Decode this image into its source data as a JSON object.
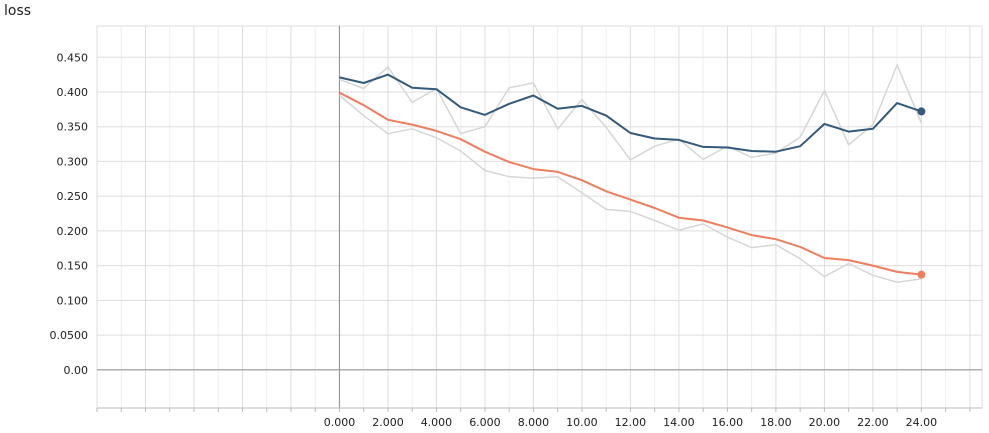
{
  "chart_data": {
    "type": "line",
    "title": "loss",
    "xlabel": "",
    "ylabel": "",
    "xlim": [
      -10,
      26.5
    ],
    "ylim": [
      -0.055,
      0.495
    ],
    "xticks": [
      0,
      2,
      4,
      6,
      8,
      10,
      12,
      14,
      16,
      18,
      20,
      22,
      24
    ],
    "xtick_labels": [
      "0.000",
      "2.000",
      "4.000",
      "6.000",
      "8.000",
      "10.00",
      "12.00",
      "14.00",
      "16.00",
      "18.00",
      "20.00",
      "22.00",
      "24.00"
    ],
    "yticks": [
      0,
      0.05,
      0.1,
      0.15,
      0.2,
      0.25,
      0.3,
      0.35,
      0.4,
      0.45
    ],
    "ytick_labels": [
      "0.00",
      "0.0500",
      "0.100",
      "0.150",
      "0.200",
      "0.250",
      "0.300",
      "0.350",
      "0.400",
      "0.450"
    ],
    "grid": true,
    "x": [
      0,
      1,
      2,
      3,
      4,
      5,
      6,
      7,
      8,
      9,
      10,
      11,
      12,
      13,
      14,
      15,
      16,
      17,
      18,
      19,
      20,
      21,
      22,
      23,
      24
    ],
    "series": [
      {
        "color": "#34597a",
        "values": [
          0.421,
          0.413,
          0.425,
          0.406,
          0.404,
          0.378,
          0.367,
          0.383,
          0.395,
          0.376,
          0.38,
          0.366,
          0.341,
          0.333,
          0.331,
          0.321,
          0.32,
          0.315,
          0.314,
          0.322,
          0.354,
          0.343,
          0.347,
          0.384,
          0.372
        ],
        "raw_values": [
          0.418,
          0.405,
          0.436,
          0.385,
          0.405,
          0.34,
          0.35,
          0.406,
          0.413,
          0.347,
          0.389,
          0.349,
          0.302,
          0.322,
          0.332,
          0.303,
          0.322,
          0.306,
          0.312,
          0.335,
          0.402,
          0.324,
          0.353,
          0.439,
          0.355
        ]
      },
      {
        "color": "#ee7e5d",
        "values": [
          0.399,
          0.381,
          0.36,
          0.353,
          0.344,
          0.332,
          0.314,
          0.299,
          0.289,
          0.285,
          0.273,
          0.257,
          0.245,
          0.233,
          0.219,
          0.215,
          0.205,
          0.194,
          0.188,
          0.177,
          0.161,
          0.158,
          0.15,
          0.141,
          0.137
        ],
        "raw_values": [
          0.395,
          0.366,
          0.34,
          0.347,
          0.334,
          0.315,
          0.287,
          0.278,
          0.276,
          0.278,
          0.255,
          0.231,
          0.228,
          0.215,
          0.201,
          0.21,
          0.191,
          0.176,
          0.18,
          0.16,
          0.134,
          0.153,
          0.136,
          0.126,
          0.131
        ]
      }
    ]
  }
}
